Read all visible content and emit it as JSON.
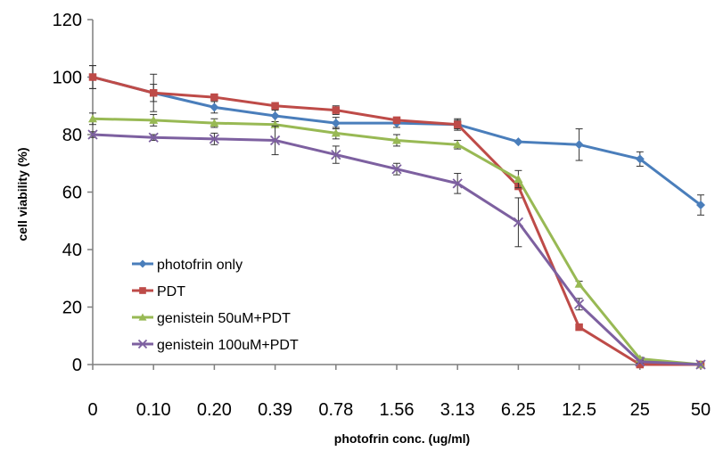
{
  "chart_data": {
    "type": "line",
    "title": "",
    "xlabel": "photofrin conc. (ug/ml)",
    "ylabel": "cell viability (%)",
    "categories": [
      "0",
      "0.10",
      "0.20",
      "0.39",
      "0.78",
      "1.56",
      "3.13",
      "6.25",
      "12.5",
      "25",
      "50"
    ],
    "yticks": [
      "0",
      "20",
      "40",
      "60",
      "80",
      "100",
      "120"
    ],
    "ylim": [
      0,
      120
    ],
    "grid": false,
    "legend_position": "lower-left",
    "series": [
      {
        "name": "photofrin only",
        "color": "#4a7ebb",
        "marker": "diamond",
        "values": [
          100,
          94.5,
          89.5,
          86.5,
          84,
          84,
          83.5,
          77.5,
          76.5,
          71.5,
          55.5
        ],
        "errors": [
          4,
          6.5,
          2,
          2,
          2,
          1.5,
          2,
          0,
          5.5,
          2.5,
          3.5
        ]
      },
      {
        "name": "PDT",
        "color": "#be4b48",
        "marker": "square",
        "values": [
          100,
          94.5,
          93,
          90,
          88.5,
          85,
          83.5,
          62,
          13,
          0,
          0
        ],
        "errors": [
          4,
          3,
          1,
          0.5,
          1.5,
          1,
          1.5,
          0,
          0,
          0,
          0
        ]
      },
      {
        "name": "genistein 50uM+PDT",
        "color": "#98b954",
        "marker": "triangle",
        "values": [
          85.5,
          85,
          84,
          83.5,
          80.5,
          78,
          76.5,
          64.5,
          28,
          2,
          0
        ],
        "errors": [
          2,
          2,
          1.5,
          1,
          2,
          2,
          1.5,
          3,
          1,
          0.5,
          0
        ]
      },
      {
        "name": "genistein 100uM+PDT",
        "color": "#7d60a0",
        "marker": "x",
        "values": [
          80,
          79,
          78.5,
          78,
          73,
          68,
          63,
          49.5,
          21,
          1,
          0
        ],
        "errors": [
          1,
          1,
          2,
          5,
          3,
          2,
          3.5,
          8.5,
          2,
          0.5,
          0
        ]
      }
    ]
  }
}
